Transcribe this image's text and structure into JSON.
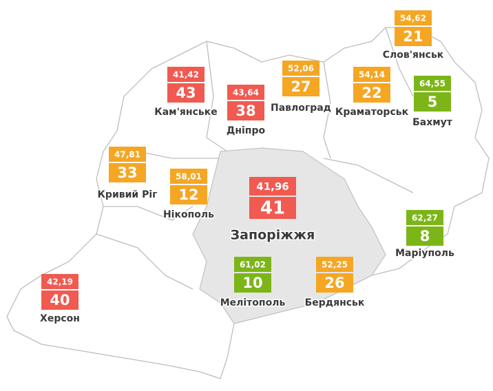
{
  "cities": [
    {
      "name": "Слов'янськ",
      "score": "54,62",
      "rank": 21,
      "color": "#f5a623"
    },
    {
      "name": "Кам'янське",
      "score": "41,42",
      "rank": 43,
      "color": "#f05a50"
    },
    {
      "name": "Дніпро",
      "score": "43,64",
      "rank": 38,
      "color": "#f05a50"
    },
    {
      "name": "Павлоград",
      "score": "52,06",
      "rank": 27,
      "color": "#f5a623"
    },
    {
      "name": "Краматорськ",
      "score": "54,14",
      "rank": 22,
      "color": "#f5a623"
    },
    {
      "name": "Бахмут",
      "score": "64,55",
      "rank": 5,
      "color": "#7cb518"
    },
    {
      "name": "Кривий Ріг",
      "score": "47,81",
      "rank": 33,
      "color": "#f5a623"
    },
    {
      "name": "Нікополь",
      "score": "58,01",
      "rank": 12,
      "color": "#f5a623"
    },
    {
      "name": "Запоріжжя",
      "score": "41,96",
      "rank": 41,
      "color": "#f05a50"
    },
    {
      "name": "Маріуполь",
      "score": "62,27",
      "rank": 8,
      "color": "#7cb518"
    },
    {
      "name": "Мелітополь",
      "score": "61,02",
      "rank": 10,
      "color": "#7cb518"
    },
    {
      "name": "Бердянськ",
      "score": "52,25",
      "rank": 26,
      "color": "#f5a623"
    },
    {
      "name": "Херсон",
      "score": "42,19",
      "rank": 40,
      "color": "#f05a50"
    }
  ]
}
